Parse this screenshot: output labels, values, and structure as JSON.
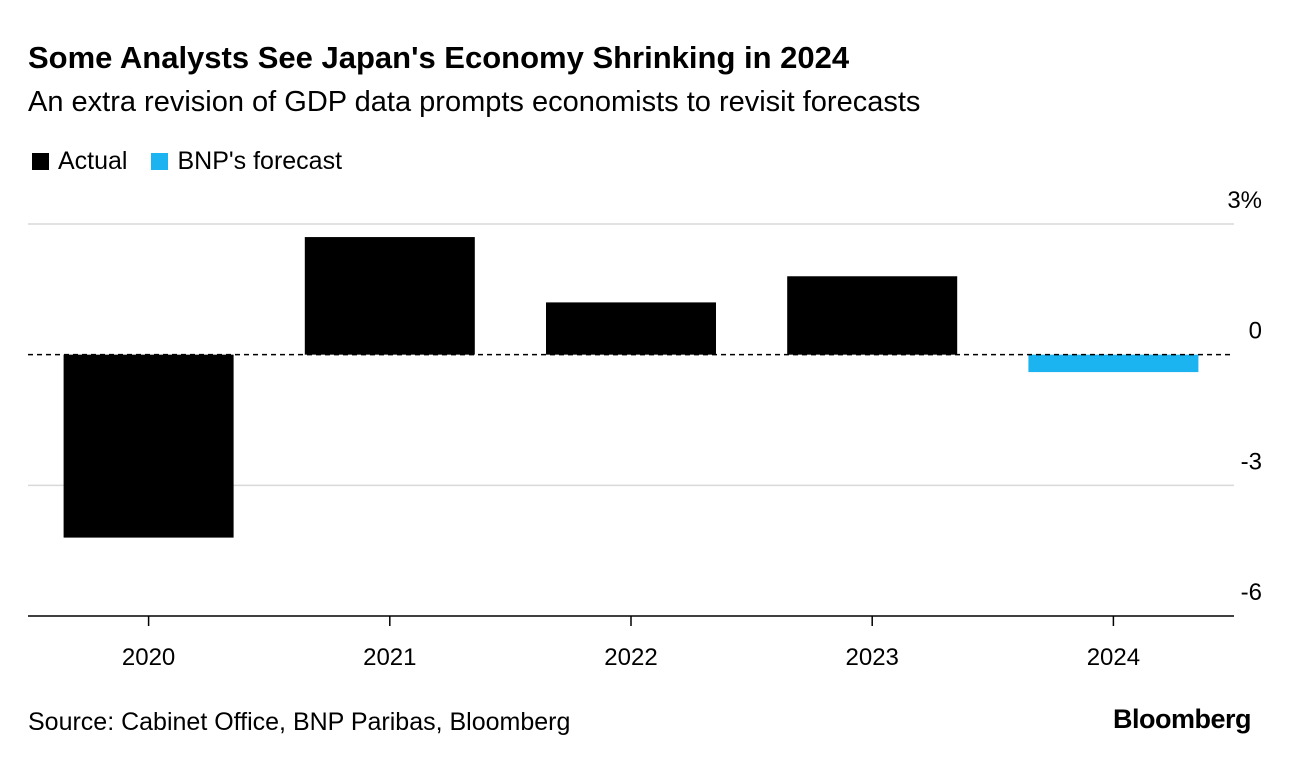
{
  "chart_data": {
    "type": "bar",
    "title": "Some Analysts See Japan's Economy Shrinking in 2024",
    "subtitle": "An extra revision of GDP data prompts economists to revisit forecasts",
    "categories": [
      "2020",
      "2021",
      "2022",
      "2023",
      "2024"
    ],
    "series": [
      {
        "name": "Actual",
        "color": "#000000",
        "values": [
          -4.2,
          2.7,
          1.2,
          1.8,
          null
        ]
      },
      {
        "name": "BNP's forecast",
        "color": "#1bb4f0",
        "values": [
          null,
          null,
          null,
          null,
          -0.4
        ]
      }
    ],
    "ylim": [
      -6,
      3
    ],
    "yticks": [
      {
        "value": 3,
        "label": "3%"
      },
      {
        "value": 0,
        "label": "0"
      },
      {
        "value": -3,
        "label": "-3"
      },
      {
        "value": -6,
        "label": "-6"
      }
    ],
    "xlabel": "",
    "ylabel": "",
    "grid": true,
    "legend_position": "top-left"
  },
  "footer": {
    "source": "Source: Cabinet Office, BNP Paribas, Bloomberg",
    "brand": "Bloomberg"
  }
}
